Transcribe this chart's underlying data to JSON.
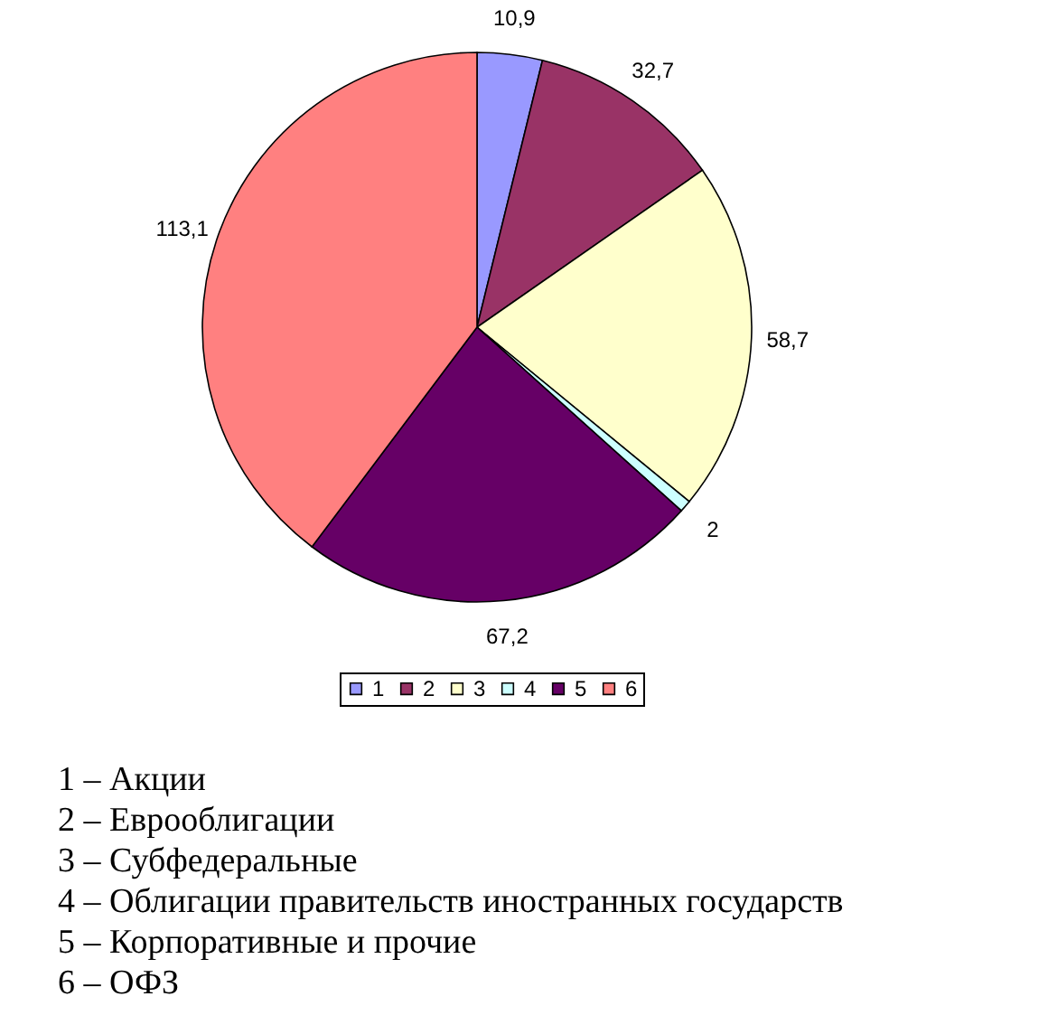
{
  "chart_data": {
    "type": "pie",
    "categories": [
      "1",
      "2",
      "3",
      "4",
      "5",
      "6"
    ],
    "values": [
      10.9,
      32.7,
      58.7,
      2,
      67.2,
      113.1
    ],
    "colors": [
      "#9999ff",
      "#993366",
      "#ffffcc",
      "#ccffff",
      "#660066",
      "#ff8080"
    ],
    "value_labels": [
      "10,9",
      "32,7",
      "58,7",
      "2",
      "67,2",
      "113,1"
    ],
    "legend": "bottom",
    "annotations": [
      "1 – Акции",
      "2 – Еврооблигации",
      "3 – Субфедеральные",
      "4 – Облигации правительств иностранных государств",
      "5 – Корпоративные и прочие",
      "6 – ОФЗ"
    ]
  }
}
